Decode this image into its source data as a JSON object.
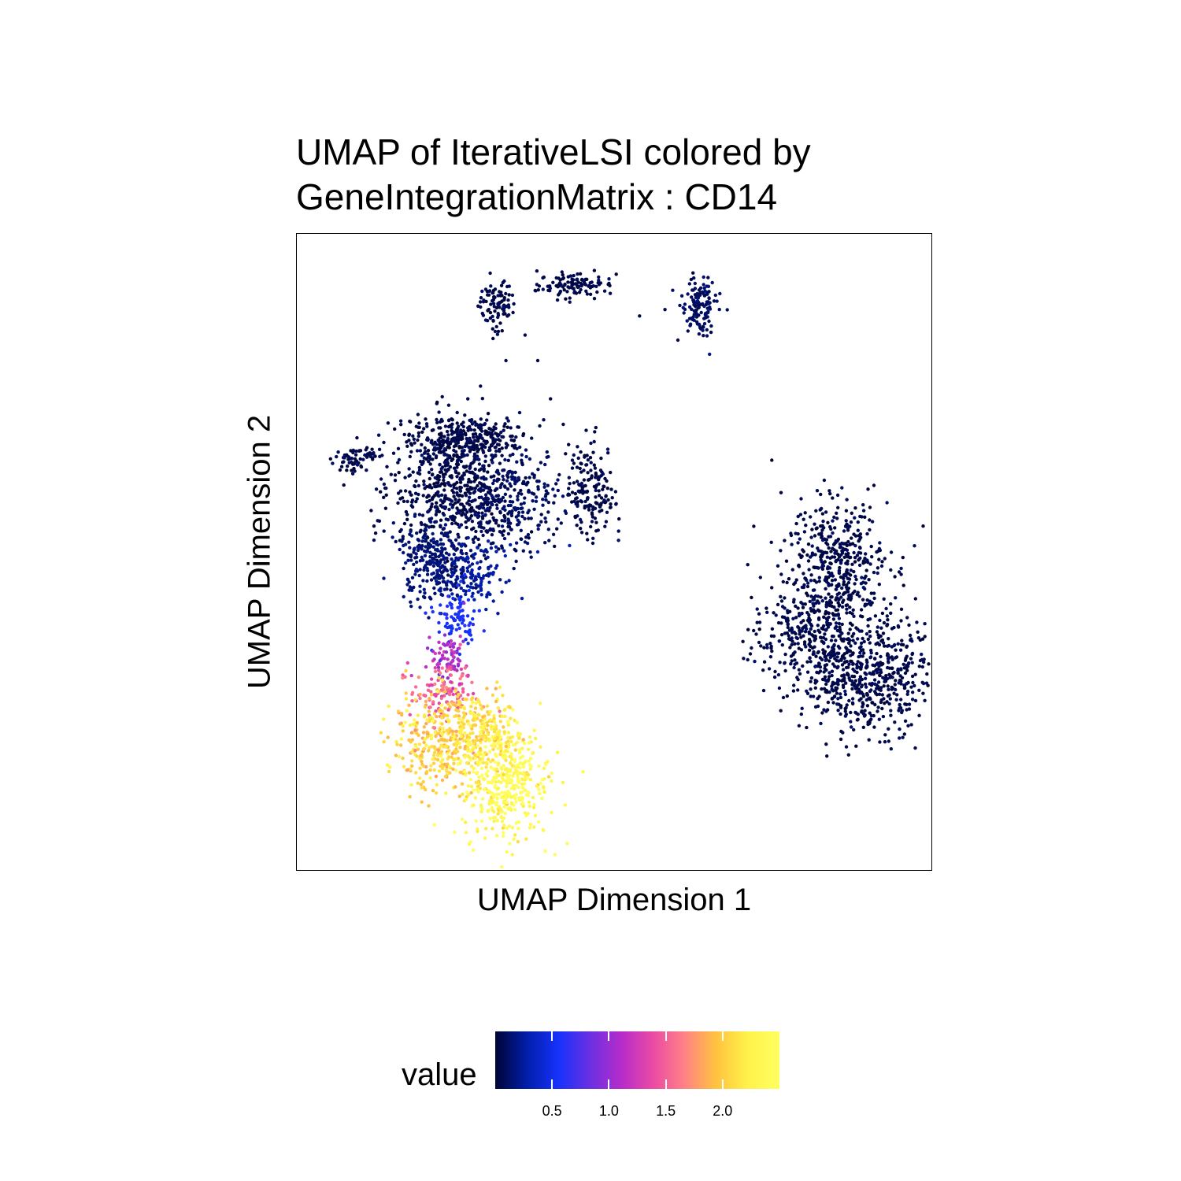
{
  "title_line1": "UMAP of IterativeLSI colored by",
  "title_line2": "GeneIntegrationMatrix : CD14",
  "xlabel": "UMAP Dimension 1",
  "ylabel": "UMAP Dimension 2",
  "legend": {
    "title": "value",
    "ticks": [
      "0.5",
      "1.0",
      "1.5",
      "2.0"
    ],
    "colors": [
      "#000436",
      "#021EA9",
      "#1632FB",
      "#6A30E1",
      "#B72CCA",
      "#EA4BA4",
      "#FF8285",
      "#FFC33F",
      "#FFF24B",
      "#FFFF60"
    ]
  },
  "chart_data": {
    "type": "scatter",
    "title": "UMAP of IterativeLSI colored by GeneIntegrationMatrix : CD14",
    "xlabel": "UMAP Dimension 1",
    "ylabel": "UMAP Dimension 2",
    "xlim": [
      0,
      100
    ],
    "ylim": [
      0,
      100
    ],
    "color_scale": {
      "name": "value",
      "min": 0,
      "max": 2.5,
      "ticks": [
        0.5,
        1.0,
        1.5,
        2.0
      ]
    },
    "grid": false,
    "legend_position": "bottom",
    "clusters": [
      {
        "cx": 31.4,
        "cy": 88.7,
        "sx": 1.4,
        "sy": 2.0,
        "n": 90,
        "value": 0.05
      },
      {
        "cx": 44.2,
        "cy": 91.8,
        "sx": 3.0,
        "sy": 1.0,
        "n": 110,
        "value": 0.05
      },
      {
        "cx": 63.2,
        "cy": 88.8,
        "sx": 1.4,
        "sy": 2.2,
        "n": 130,
        "value": 0.1
      },
      {
        "cx": 8.2,
        "cy": 64.5,
        "sx": 1.2,
        "sy": 1.0,
        "n": 45,
        "value": 0.05
      },
      {
        "cx": 11.5,
        "cy": 65.2,
        "sx": 1.0,
        "sy": 0.6,
        "n": 25,
        "value": 0.05
      },
      {
        "cx": 26.5,
        "cy": 67.6,
        "sx": 4.5,
        "sy": 1.8,
        "n": 320,
        "value": 0.05
      },
      {
        "cx": 25.0,
        "cy": 59.5,
        "sx": 5.0,
        "sy": 5.0,
        "n": 560,
        "value": 0.05
      },
      {
        "cx": 33.5,
        "cy": 57.5,
        "sx": 4.5,
        "sy": 4.0,
        "n": 260,
        "value": 0.1
      },
      {
        "cx": 46.4,
        "cy": 59.7,
        "sx": 1.8,
        "sy": 3.8,
        "n": 170,
        "value": 0.05
      },
      {
        "cx": 21.8,
        "cy": 48.5,
        "sx": 2.8,
        "sy": 3.0,
        "n": 260,
        "value": 0.15
      },
      {
        "cx": 28.5,
        "cy": 46.5,
        "sx": 2.2,
        "sy": 2.2,
        "n": 110,
        "value": 0.25
      },
      {
        "cx": 25.2,
        "cy": 39.5,
        "sx": 1.6,
        "sy": 2.5,
        "n": 90,
        "value": 0.55
      },
      {
        "cx": 23.9,
        "cy": 33.4,
        "sx": 1.3,
        "sy": 2.0,
        "n": 80,
        "value": 1.1
      },
      {
        "cx": 22.8,
        "cy": 28.0,
        "sx": 2.5,
        "sy": 2.0,
        "n": 120,
        "value": 1.5
      },
      {
        "cx": 23.5,
        "cy": 20.5,
        "sx": 4.2,
        "sy": 3.8,
        "n": 420,
        "value": 2.05
      },
      {
        "cx": 33.0,
        "cy": 14.0,
        "sx": 3.4,
        "sy": 4.5,
        "n": 430,
        "value": 2.4
      },
      {
        "cx": 29.8,
        "cy": 22.6,
        "sx": 2.5,
        "sy": 2.5,
        "n": 120,
        "value": 2.15
      },
      {
        "cx": 84.7,
        "cy": 47.8,
        "sx": 4.2,
        "sy": 5.2,
        "n": 480,
        "value": 0.05
      },
      {
        "cx": 90.0,
        "cy": 30.4,
        "sx": 5.0,
        "sy": 4.5,
        "n": 560,
        "value": 0.05
      },
      {
        "cx": 80.8,
        "cy": 36.0,
        "sx": 4.5,
        "sy": 3.2,
        "n": 260,
        "value": 0.05
      }
    ],
    "scatter_points": [
      {
        "x": 36,
        "y": 84,
        "value": 0.05
      },
      {
        "x": 33,
        "y": 80,
        "value": 0.05
      },
      {
        "x": 29,
        "y": 76,
        "value": 0.05
      },
      {
        "x": 27,
        "y": 74,
        "value": 0.05
      },
      {
        "x": 24,
        "y": 73,
        "value": 0.05
      },
      {
        "x": 38,
        "y": 80,
        "value": 0.05
      },
      {
        "x": 40,
        "y": 74,
        "value": 0.05
      },
      {
        "x": 54,
        "y": 87,
        "value": 0.05
      },
      {
        "x": 58,
        "y": 88,
        "value": 0.05
      },
      {
        "x": 65,
        "y": 81,
        "value": 0.2
      },
      {
        "x": 42,
        "y": 70,
        "value": 0.05
      },
      {
        "x": 16,
        "y": 64,
        "value": 0.05
      },
      {
        "x": 14,
        "y": 60,
        "value": 0.05
      },
      {
        "x": 71,
        "y": 48,
        "value": 0.05
      },
      {
        "x": 73,
        "y": 46,
        "value": 0.05
      },
      {
        "x": 43,
        "y": 51,
        "value": 0.35
      },
      {
        "x": 38,
        "y": 50,
        "value": 0.3
      },
      {
        "x": 32,
        "y": 25,
        "value": 1.6
      }
    ]
  }
}
